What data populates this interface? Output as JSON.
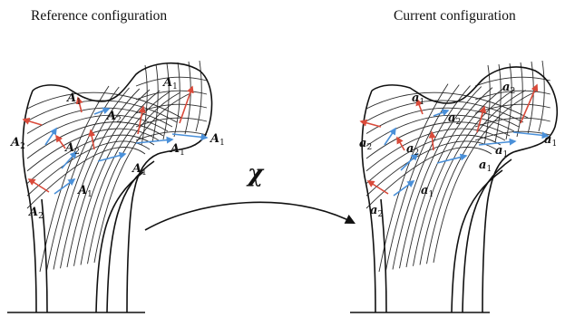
{
  "titles": {
    "reference": "Reference configuration",
    "current": "Current configuration"
  },
  "map_label": "χ",
  "labels": {
    "reference": [
      {
        "base": "A",
        "sub": "1"
      },
      {
        "base": "A",
        "sub": "2"
      },
      {
        "base": "A",
        "sub": "2"
      },
      {
        "base": "A",
        "sub": "1"
      },
      {
        "base": "A",
        "sub": "2"
      },
      {
        "base": "A",
        "sub": "1"
      },
      {
        "base": "A",
        "sub": "1"
      },
      {
        "base": "A",
        "sub": "1"
      },
      {
        "base": "A",
        "sub": "1"
      },
      {
        "base": "A",
        "sub": "2"
      },
      {
        "base": "A",
        "sub": "2"
      }
    ],
    "current": [
      {
        "base": "a",
        "sub": "1"
      },
      {
        "base": "a",
        "sub": "2"
      },
      {
        "base": "a",
        "sub": "2"
      },
      {
        "base": "a",
        "sub": "2"
      },
      {
        "base": "a",
        "sub": "2"
      },
      {
        "base": "a",
        "sub": "1"
      },
      {
        "base": "a",
        "sub": "1"
      },
      {
        "base": "a",
        "sub": "1"
      },
      {
        "base": "a",
        "sub": "1"
      },
      {
        "base": "a",
        "sub": "2"
      },
      {
        "base": "a",
        "sub": "1"
      }
    ]
  },
  "colors": {
    "outline": "#111111",
    "grid": "#2b2b2b",
    "vector_a1": "#4a90d9",
    "vector_a2": "#d94a3a"
  }
}
